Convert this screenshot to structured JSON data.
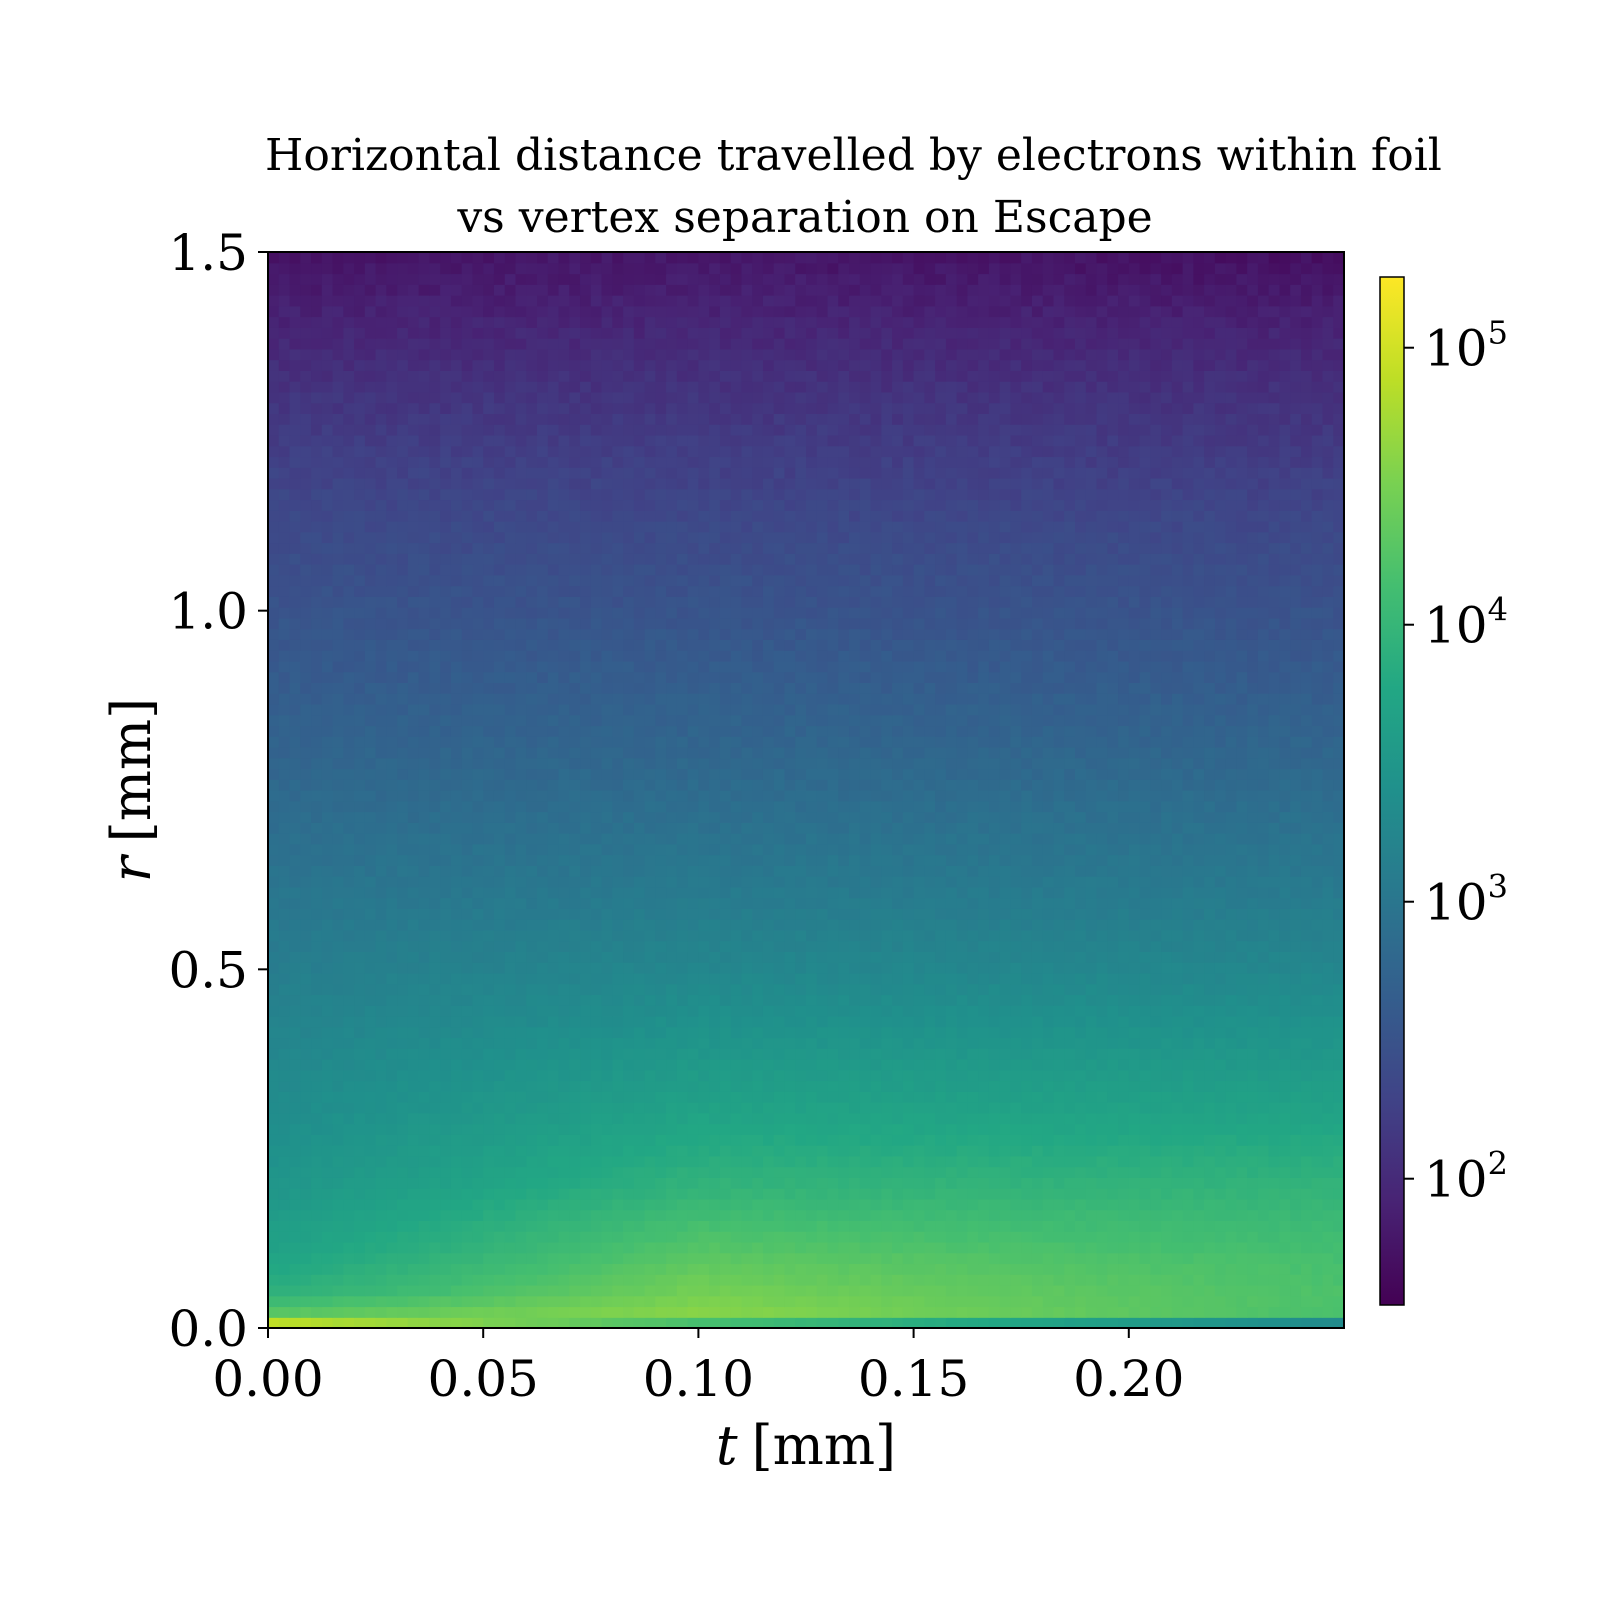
{
  "chart_data": {
    "type": "heatmap",
    "title": [
      "Horizontal distance travelled by electrons within foil",
      "vs vertex separation on Escape"
    ],
    "xlabel": {
      "var": "t",
      "unit": "[mm]"
    },
    "ylabel": {
      "var": "r",
      "unit": "[mm]"
    },
    "xlim": [
      0.0,
      0.25
    ],
    "ylim": [
      0.0,
      1.5
    ],
    "xticks": [
      0.0,
      0.05,
      0.1,
      0.15,
      0.2
    ],
    "xtick_labels": [
      "0.00",
      "0.05",
      "0.10",
      "0.15",
      "0.20"
    ],
    "yticks": [
      0.0,
      0.5,
      1.0,
      1.5
    ],
    "ytick_labels": [
      "0.0",
      "0.5",
      "1.0",
      "1.5"
    ],
    "bins": {
      "x": 100,
      "y": 100
    },
    "colorscale": "viridis",
    "color_scale_type": "log",
    "color_range": [
      35,
      180000
    ],
    "colorbar_ticks": [
      {
        "value": 100,
        "base": "10",
        "exp": "2"
      },
      {
        "value": 1000,
        "base": "10",
        "exp": "3"
      },
      {
        "value": 10000,
        "base": "10",
        "exp": "4"
      },
      {
        "value": 100000,
        "base": "10",
        "exp": "5"
      }
    ],
    "colorbar_position": "right",
    "count_profile_vs_r": {
      "r": [
        0.0,
        0.02,
        0.05,
        0.1,
        0.2,
        0.3,
        0.4,
        0.5,
        0.6,
        0.7,
        0.8,
        0.9,
        1.0,
        1.1,
        1.2,
        1.3,
        1.4,
        1.5
      ],
      "count_near_t0": [
        180000,
        20000,
        8000,
        5000,
        3000,
        2200,
        1700,
        1300,
        1000,
        750,
        560,
        420,
        330,
        250,
        190,
        130,
        85,
        55
      ],
      "count_mid_t": [
        8000,
        40000,
        30000,
        20000,
        9000,
        5000,
        3000,
        1800,
        1200,
        850,
        600,
        450,
        330,
        250,
        180,
        130,
        90,
        60
      ],
      "count_high_t": [
        600,
        15000,
        16000,
        14000,
        9000,
        5000,
        3000,
        1800,
        1200,
        850,
        600,
        430,
        320,
        240,
        170,
        120,
        80,
        50
      ]
    }
  }
}
